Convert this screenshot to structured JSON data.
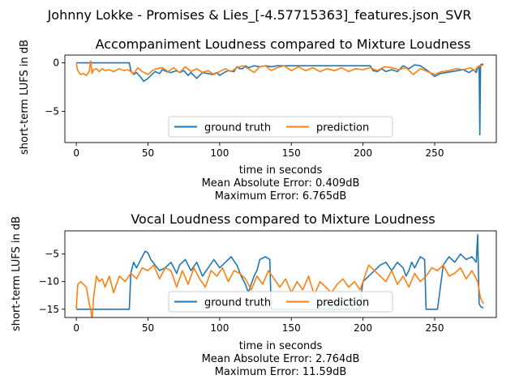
{
  "figure": {
    "suptitle": "Johnny Lokke - Promises & Lies_[-4.57715363]_features.json_SVR"
  },
  "chart_data": [
    {
      "type": "line",
      "title": "Accompaniment Loudness compared to Mixture Loudness",
      "xlabel": "time in seconds",
      "ylabel": "short-term LUFS in dB",
      "xlim": [
        -8,
        293
      ],
      "ylim": [
        -8.2,
        0.8
      ],
      "xticks": [
        0,
        50,
        100,
        150,
        200,
        250
      ],
      "yticks": [
        0,
        -5
      ],
      "grid": false,
      "legend": {
        "placement": "lower center",
        "columns": 2
      },
      "stats": [
        "Mean Absolute Error: 0.409dB",
        "Maximum Error: 6.765dB"
      ],
      "series": [
        {
          "name": "ground truth",
          "color": "#1f77b4",
          "x": [
            0,
            10,
            20,
            30,
            37,
            38,
            40,
            42,
            45,
            47,
            50,
            52,
            55,
            58,
            60,
            63,
            66,
            70,
            72,
            75,
            78,
            80,
            84,
            88,
            92,
            95,
            98,
            100,
            103,
            106,
            110,
            112,
            114,
            116,
            118,
            120,
            124,
            128,
            132,
            136,
            140,
            145,
            150,
            155,
            160,
            165,
            170,
            180,
            190,
            200,
            205,
            207,
            210,
            213,
            216,
            220,
            224,
            228,
            232,
            236,
            240,
            243,
            246,
            250,
            254,
            258,
            262,
            266,
            270,
            274,
            277,
            279,
            280,
            281,
            281.5,
            282,
            284
          ],
          "y": [
            0,
            0,
            0,
            0,
            0,
            -0.8,
            -1.2,
            -1.0,
            -1.5,
            -1.9,
            -1.6,
            -1.3,
            -0.9,
            -1.1,
            -0.7,
            -0.9,
            -1.0,
            -0.8,
            -1.0,
            -0.8,
            -1.3,
            -1.0,
            -1.6,
            -1.0,
            -1.1,
            -1.2,
            -1.0,
            -1.3,
            -1.0,
            -0.8,
            -0.9,
            -0.4,
            -0.6,
            -0.6,
            -0.3,
            -0.5,
            -0.3,
            -0.4,
            -0.3,
            -0.4,
            -0.3,
            -0.3,
            -0.3,
            -0.3,
            -0.3,
            -0.3,
            -0.3,
            -0.3,
            -0.3,
            -0.3,
            -0.3,
            -0.8,
            -0.9,
            -0.6,
            -0.9,
            -0.7,
            -0.9,
            -0.3,
            -0.6,
            -0.2,
            -0.3,
            -0.6,
            -0.9,
            -1.4,
            -1.1,
            -1.0,
            -0.9,
            -0.8,
            -0.7,
            -1.0,
            -0.7,
            -1.0,
            -0.5,
            -0.3,
            -7.4,
            -0.2,
            -0.1
          ]
        },
        {
          "name": "prediction",
          "color": "#ff7f0e",
          "x": [
            0,
            1,
            3,
            5,
            7,
            9,
            10,
            11,
            12,
            14,
            16,
            18,
            20,
            23,
            26,
            30,
            33,
            36,
            40,
            43,
            46,
            50,
            53,
            56,
            60,
            64,
            68,
            72,
            76,
            80,
            84,
            88,
            92,
            96,
            100,
            104,
            108,
            112,
            116,
            120,
            124,
            128,
            132,
            136,
            140,
            145,
            150,
            155,
            160,
            165,
            170,
            175,
            180,
            185,
            190,
            195,
            200,
            205,
            210,
            215,
            220,
            225,
            230,
            235,
            240,
            245,
            250,
            255,
            260,
            265,
            270,
            275,
            278,
            280,
            282,
            284
          ],
          "y": [
            -0.1,
            -0.8,
            -1.2,
            -1.1,
            -1.3,
            -0.9,
            0.2,
            -1.1,
            -0.7,
            -0.6,
            -0.9,
            -0.6,
            -0.8,
            -0.7,
            -0.9,
            -0.6,
            -0.8,
            -0.7,
            -1.1,
            -0.5,
            -0.9,
            -1.2,
            -0.8,
            -0.6,
            -0.5,
            -0.9,
            -0.5,
            -1.0,
            -0.4,
            -0.9,
            -0.6,
            -1.0,
            -0.8,
            -1.2,
            -0.9,
            -0.6,
            -0.9,
            -0.5,
            -0.3,
            -0.6,
            -1.0,
            -0.4,
            -0.3,
            -0.8,
            -0.5,
            -0.3,
            -0.8,
            -0.4,
            -0.8,
            -0.5,
            -0.9,
            -0.6,
            -0.8,
            -0.5,
            -0.9,
            -0.6,
            -0.7,
            -0.5,
            -0.8,
            -0.4,
            -0.5,
            -0.7,
            -0.5,
            -1.2,
            -0.6,
            -0.9,
            -1.2,
            -0.9,
            -0.8,
            -0.6,
            -0.7,
            -0.5,
            -0.8,
            -0.4,
            -0.3,
            -0.2
          ]
        }
      ]
    },
    {
      "type": "line",
      "title": "Vocal Loudness compared to Mixture Loudness",
      "xlabel": "time in seconds",
      "ylabel": "short-term LUFS in dB",
      "xlim": [
        -8,
        293
      ],
      "ylim": [
        -16.5,
        -0.8
      ],
      "xticks": [
        0,
        50,
        100,
        150,
        200,
        250
      ],
      "yticks": [
        -5,
        -10,
        -15
      ],
      "grid": false,
      "legend": {
        "placement": "lower center",
        "columns": 2
      },
      "stats": [
        "Mean Absolute Error: 2.764dB",
        "Maximum Error: 11.59dB"
      ],
      "series": [
        {
          "name": "ground truth",
          "color": "#1f77b4",
          "x": [
            0,
            10,
            20,
            30,
            37,
            38,
            40,
            42,
            44,
            46,
            48,
            50,
            52,
            55,
            58,
            62,
            66,
            70,
            72,
            76,
            80,
            84,
            88,
            92,
            96,
            100,
            104,
            108,
            112,
            115,
            118,
            120,
            124,
            126,
            128,
            132,
            135,
            136,
            140,
            144,
            148,
            152,
            156,
            160,
            164,
            168,
            170,
            172,
            180,
            190,
            198,
            199,
            200,
            204,
            208,
            212,
            216,
            220,
            224,
            228,
            230,
            232,
            234,
            236,
            240,
            243,
            244,
            248,
            252,
            256,
            260,
            264,
            268,
            272,
            276,
            279,
            280,
            281,
            282,
            284
          ],
          "y": [
            -15,
            -15,
            -15,
            -15,
            -15,
            -8.5,
            -6.5,
            -7.5,
            -6.5,
            -5.5,
            -4.5,
            -4.8,
            -6.0,
            -7.0,
            -8.0,
            -7.5,
            -6.5,
            -8.5,
            -7.0,
            -6.0,
            -8.0,
            -6.5,
            -9.0,
            -7.5,
            -6.0,
            -7.5,
            -6.5,
            -5.5,
            -7.0,
            -9.0,
            -10.5,
            -12.0,
            -9.0,
            -8.0,
            -6.0,
            -5.5,
            -6.0,
            -15.0,
            -15.0,
            -15.0,
            -15.0,
            -15.0,
            -15.0,
            -15.0,
            -15.0,
            -15.0,
            -15.0,
            -15.0,
            -15.0,
            -15.0,
            -15.0,
            -12.0,
            -10.0,
            -9.0,
            -8.0,
            -7.0,
            -6.5,
            -8.0,
            -6.5,
            -7.5,
            -9.0,
            -8.0,
            -6.5,
            -7.5,
            -5.5,
            -6.0,
            -15.0,
            -15.0,
            -15.0,
            -7.0,
            -5.5,
            -6.5,
            -5.0,
            -6.0,
            -5.5,
            -6.5,
            -1.5,
            -14.0,
            -14.5,
            -14.8
          ]
        },
        {
          "name": "prediction",
          "color": "#ff7f0e",
          "x": [
            0,
            1,
            3,
            5,
            7,
            9,
            10,
            11,
            12,
            14,
            16,
            18,
            20,
            23,
            26,
            30,
            34,
            38,
            42,
            46,
            50,
            54,
            58,
            62,
            66,
            70,
            74,
            78,
            82,
            86,
            90,
            94,
            98,
            102,
            106,
            110,
            114,
            118,
            122,
            126,
            130,
            134,
            138,
            142,
            146,
            150,
            154,
            158,
            162,
            166,
            170,
            174,
            178,
            182,
            186,
            190,
            194,
            198,
            200,
            204,
            208,
            212,
            216,
            220,
            224,
            228,
            232,
            236,
            240,
            244,
            248,
            252,
            256,
            260,
            264,
            268,
            272,
            276,
            280,
            282,
            284
          ],
          "y": [
            -15.0,
            -10.5,
            -10.0,
            -10.5,
            -11.0,
            -14.0,
            -15.0,
            -17.0,
            -13.0,
            -9.0,
            -10.0,
            -9.5,
            -11.0,
            -9.0,
            -12.0,
            -9.0,
            -10.0,
            -8.5,
            -9.5,
            -7.5,
            -8.0,
            -7.0,
            -9.5,
            -7.5,
            -8.0,
            -11.0,
            -8.0,
            -10.5,
            -7.5,
            -9.5,
            -11.0,
            -8.0,
            -9.0,
            -7.5,
            -10.0,
            -8.0,
            -8.5,
            -9.5,
            -11.5,
            -9.0,
            -10.5,
            -8.0,
            -9.5,
            -11.0,
            -9.5,
            -12.0,
            -10.0,
            -11.5,
            -9.0,
            -12.5,
            -10.0,
            -11.0,
            -12.0,
            -10.5,
            -9.5,
            -11.0,
            -10.0,
            -11.5,
            -10.0,
            -7.0,
            -8.0,
            -9.0,
            -10.0,
            -8.0,
            -10.5,
            -9.0,
            -11.0,
            -8.5,
            -10.0,
            -9.0,
            -7.5,
            -8.0,
            -7.0,
            -9.0,
            -8.5,
            -7.5,
            -9.5,
            -8.0,
            -10.0,
            -13.0,
            -14.0
          ]
        }
      ]
    }
  ]
}
